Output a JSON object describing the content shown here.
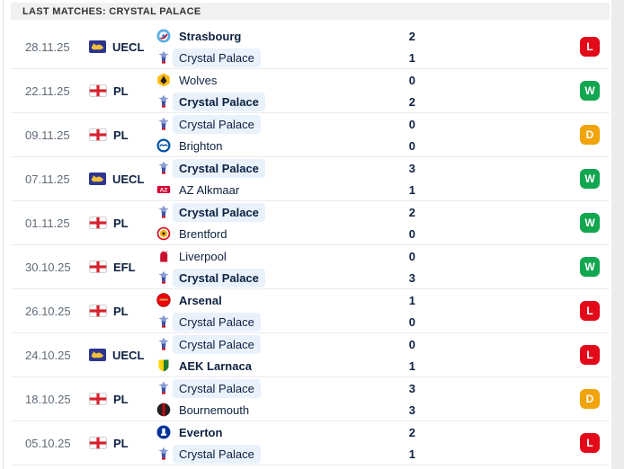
{
  "header": {
    "title": "LAST MATCHES: CRYSTAL PALACE"
  },
  "highlight_team": "Crystal Palace",
  "colors": {
    "win_badge": "#12a64f",
    "loss_badge": "#e2091a",
    "draw_badge": "#f0a30b",
    "highlight_row": "#e9f2fc",
    "text_dark": "#0c2040",
    "text_gray": "#5e6b78"
  },
  "result_colors": {
    "W": "#12a64f",
    "L": "#e2091a",
    "D": "#f0a30b"
  },
  "matches": [
    {
      "date": "28.11.25",
      "competition": "UECL",
      "competition_icon": "uecl-logo",
      "result": "L",
      "teams": [
        {
          "name": "Strasbourg",
          "score": "2",
          "logo": "strasbourg",
          "winner": true,
          "highlight": false
        },
        {
          "name": "Crystal Palace",
          "score": "1",
          "logo": "crystal-palace",
          "winner": false,
          "highlight": true
        }
      ]
    },
    {
      "date": "22.11.25",
      "competition": "PL",
      "competition_icon": "england-flag",
      "result": "W",
      "teams": [
        {
          "name": "Wolves",
          "score": "0",
          "logo": "wolves",
          "winner": false,
          "highlight": false
        },
        {
          "name": "Crystal Palace",
          "score": "2",
          "logo": "crystal-palace",
          "winner": true,
          "highlight": true
        }
      ]
    },
    {
      "date": "09.11.25",
      "competition": "PL",
      "competition_icon": "england-flag",
      "result": "D",
      "teams": [
        {
          "name": "Crystal Palace",
          "score": "0",
          "logo": "crystal-palace",
          "winner": false,
          "highlight": true
        },
        {
          "name": "Brighton",
          "score": "0",
          "logo": "brighton",
          "winner": false,
          "highlight": false
        }
      ]
    },
    {
      "date": "07.11.25",
      "competition": "UECL",
      "competition_icon": "uecl-logo",
      "result": "W",
      "teams": [
        {
          "name": "Crystal Palace",
          "score": "3",
          "logo": "crystal-palace",
          "winner": true,
          "highlight": true
        },
        {
          "name": "AZ Alkmaar",
          "score": "1",
          "logo": "az-alkmaar",
          "winner": false,
          "highlight": false
        }
      ]
    },
    {
      "date": "01.11.25",
      "competition": "PL",
      "competition_icon": "england-flag",
      "result": "W",
      "teams": [
        {
          "name": "Crystal Palace",
          "score": "2",
          "logo": "crystal-palace",
          "winner": true,
          "highlight": true
        },
        {
          "name": "Brentford",
          "score": "0",
          "logo": "brentford",
          "winner": false,
          "highlight": false
        }
      ]
    },
    {
      "date": "30.10.25",
      "competition": "EFL",
      "competition_icon": "england-flag",
      "result": "W",
      "teams": [
        {
          "name": "Liverpool",
          "score": "0",
          "logo": "liverpool",
          "winner": false,
          "highlight": false
        },
        {
          "name": "Crystal Palace",
          "score": "3",
          "logo": "crystal-palace",
          "winner": true,
          "highlight": true
        }
      ]
    },
    {
      "date": "26.10.25",
      "competition": "PL",
      "competition_icon": "england-flag",
      "result": "L",
      "teams": [
        {
          "name": "Arsenal",
          "score": "1",
          "logo": "arsenal",
          "winner": true,
          "highlight": false
        },
        {
          "name": "Crystal Palace",
          "score": "0",
          "logo": "crystal-palace",
          "winner": false,
          "highlight": true
        }
      ]
    },
    {
      "date": "24.10.25",
      "competition": "UECL",
      "competition_icon": "uecl-logo",
      "result": "L",
      "teams": [
        {
          "name": "Crystal Palace",
          "score": "0",
          "logo": "crystal-palace",
          "winner": false,
          "highlight": true
        },
        {
          "name": "AEK Larnaca",
          "score": "1",
          "logo": "aek-larnaca",
          "winner": true,
          "highlight": false
        }
      ]
    },
    {
      "date": "18.10.25",
      "competition": "PL",
      "competition_icon": "england-flag",
      "result": "D",
      "teams": [
        {
          "name": "Crystal Palace",
          "score": "3",
          "logo": "crystal-palace",
          "winner": false,
          "highlight": true
        },
        {
          "name": "Bournemouth",
          "score": "3",
          "logo": "bournemouth",
          "winner": false,
          "highlight": false
        }
      ]
    },
    {
      "date": "05.10.25",
      "competition": "PL",
      "competition_icon": "england-flag",
      "result": "L",
      "teams": [
        {
          "name": "Everton",
          "score": "2",
          "logo": "everton",
          "winner": true,
          "highlight": false
        },
        {
          "name": "Crystal Palace",
          "score": "1",
          "logo": "crystal-palace",
          "winner": false,
          "highlight": true
        }
      ]
    }
  ]
}
